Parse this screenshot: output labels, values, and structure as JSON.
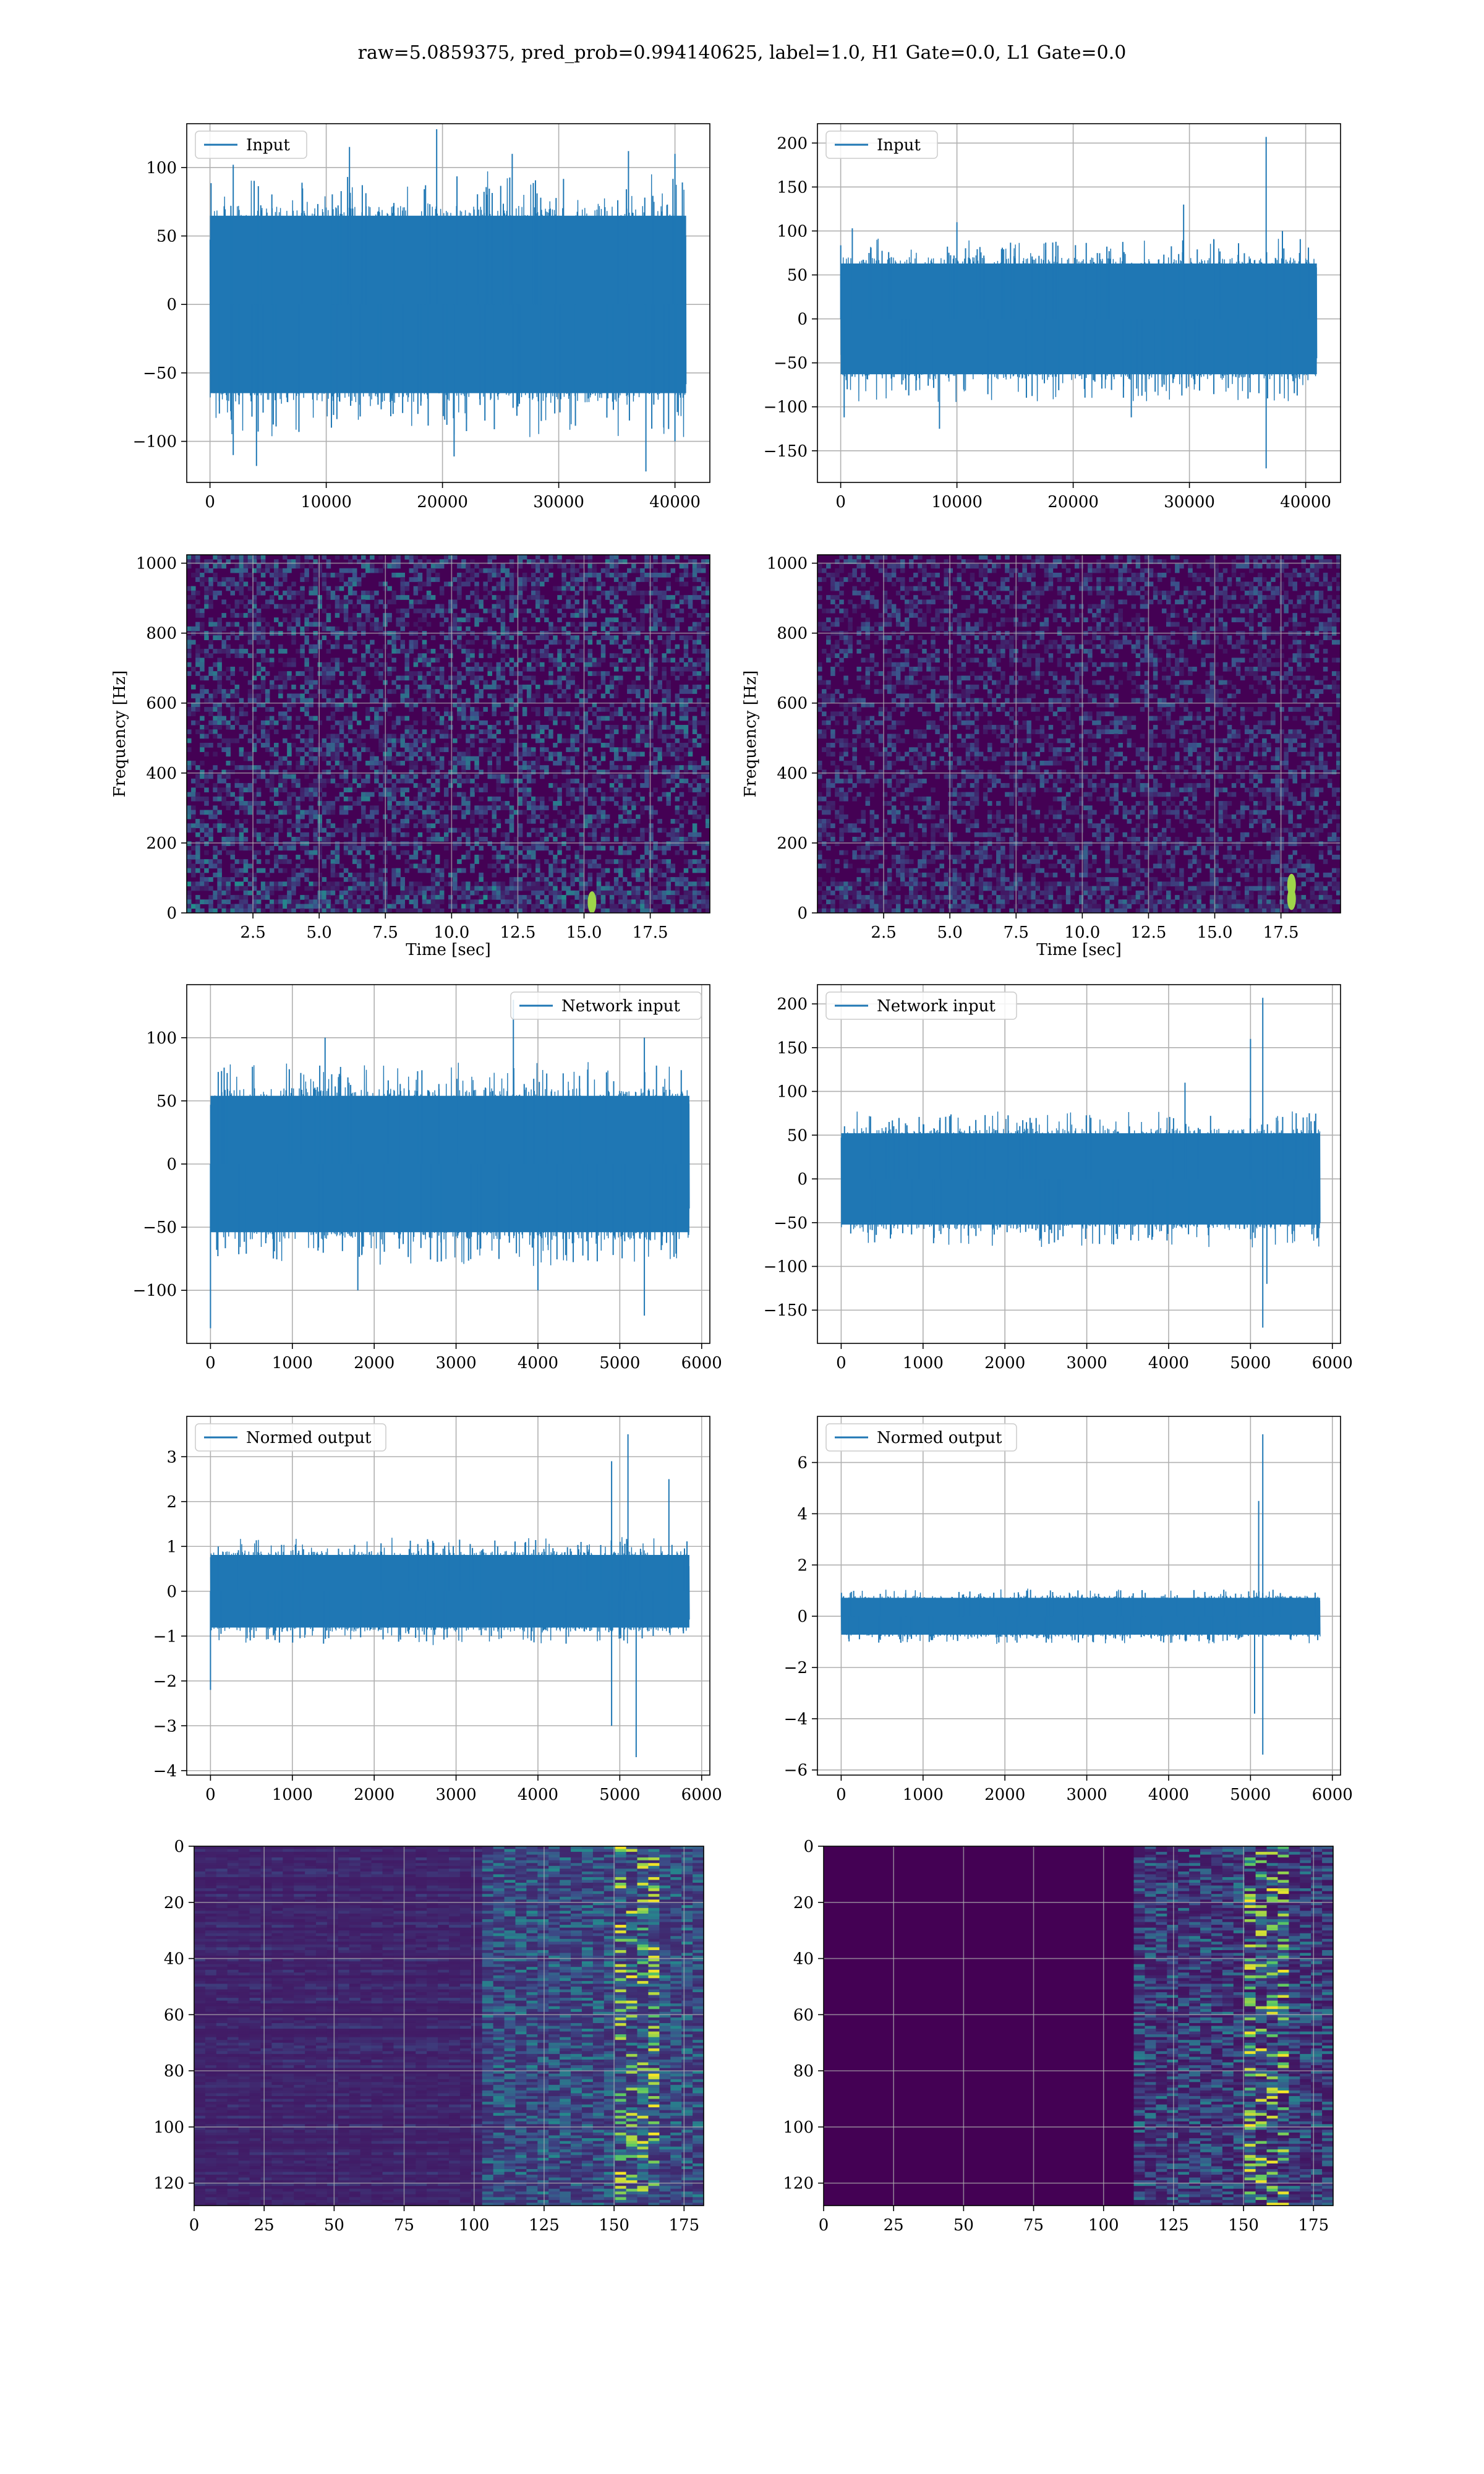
{
  "suptitle": "raw=5.0859375, pred_prob=0.994140625, label=1.0, H1 Gate=0.0, L1 Gate=0.0",
  "colors": {
    "series": "#1f77b4",
    "viridis_low": "#440154",
    "viridis_mid": "#3b528b",
    "viridis_teal": "#21918c",
    "viridis_green": "#5ec962",
    "viridis_high": "#fde725",
    "grid": "#b0b0b0"
  },
  "chart_data": [
    {
      "id": "input-h1",
      "type": "line",
      "legend": "Input",
      "legend_loc": "upper left",
      "grid": true,
      "xlim": [
        -2000,
        43000
      ],
      "ylim": [
        -130,
        132
      ],
      "xticks": [
        0,
        10000,
        20000,
        30000,
        40000
      ],
      "yticks": [
        -100,
        -50,
        0,
        50,
        100
      ],
      "x_range": [
        0,
        40960
      ],
      "band": [
        -72,
        72
      ],
      "peaks_up": [
        [
          2000,
          102
        ],
        [
          12000,
          115
        ],
        [
          19500,
          128
        ],
        [
          26000,
          110
        ],
        [
          36000,
          112
        ],
        [
          40000,
          110
        ]
      ],
      "peaks_down": [
        [
          2000,
          -110
        ],
        [
          4000,
          -118
        ],
        [
          21000,
          -111
        ],
        [
          37500,
          -122
        ],
        [
          40000,
          -100
        ]
      ]
    },
    {
      "id": "input-l1",
      "type": "line",
      "legend": "Input",
      "legend_loc": "upper left",
      "grid": true,
      "xlim": [
        -2000,
        43000
      ],
      "ylim": [
        -186,
        222
      ],
      "xticks": [
        0,
        10000,
        20000,
        30000,
        40000
      ],
      "yticks": [
        -150,
        -100,
        -50,
        0,
        50,
        100,
        150,
        200
      ],
      "x_range": [
        0,
        40960
      ],
      "band": [
        -70,
        70
      ],
      "peaks_up": [
        [
          1000,
          103
        ],
        [
          10000,
          110
        ],
        [
          29500,
          130
        ],
        [
          36600,
          207
        ],
        [
          38000,
          100
        ]
      ],
      "peaks_down": [
        [
          300,
          -112
        ],
        [
          8500,
          -125
        ],
        [
          25000,
          -112
        ],
        [
          36600,
          -170
        ]
      ]
    },
    {
      "id": "spectrogram-h1",
      "type": "heatmap",
      "xlabel": "Time [sec]",
      "ylabel": "Frequency [Hz]",
      "grid": true,
      "xlim": [
        0,
        19.75
      ],
      "ylim": [
        0,
        1024
      ],
      "xticks": [
        2.5,
        5.0,
        7.5,
        10.0,
        12.5,
        15.0,
        17.5
      ],
      "xtick_labels": [
        "2.5",
        "5.0",
        "7.5",
        "10.0",
        "12.5",
        "15.0",
        "17.5"
      ],
      "yticks": [
        0,
        200,
        400,
        600,
        800,
        1000
      ],
      "hot_spots": [
        [
          15.3,
          30
        ]
      ]
    },
    {
      "id": "spectrogram-l1",
      "type": "heatmap",
      "xlabel": "Time [sec]",
      "ylabel": "Frequency [Hz]",
      "grid": true,
      "xlim": [
        0,
        19.75
      ],
      "ylim": [
        0,
        1024
      ],
      "xticks": [
        2.5,
        5.0,
        7.5,
        10.0,
        12.5,
        15.0,
        17.5
      ],
      "xtick_labels": [
        "2.5",
        "5.0",
        "7.5",
        "10.0",
        "12.5",
        "15.0",
        "17.5"
      ],
      "yticks": [
        0,
        200,
        400,
        600,
        800,
        1000
      ],
      "hot_spots": [
        [
          17.9,
          80
        ],
        [
          17.9,
          40
        ]
      ]
    },
    {
      "id": "network-input-h1",
      "type": "line",
      "legend": "Network input",
      "legend_loc": "upper right",
      "grid": true,
      "xlim": [
        -290,
        6100
      ],
      "ylim": [
        -142,
        142
      ],
      "xticks": [
        0,
        1000,
        2000,
        3000,
        4000,
        5000,
        6000
      ],
      "yticks": [
        -100,
        -50,
        0,
        50,
        100
      ],
      "x_range": [
        0,
        5850
      ],
      "band": [
        -60,
        60
      ],
      "peaks_up": [
        [
          1400,
          100
        ],
        [
          3700,
          130
        ],
        [
          5300,
          100
        ]
      ],
      "peaks_down": [
        [
          0,
          -130
        ],
        [
          1800,
          -100
        ],
        [
          4000,
          -100
        ],
        [
          5300,
          -120
        ]
      ]
    },
    {
      "id": "network-input-l1",
      "type": "line",
      "legend": "Network input",
      "legend_loc": "upper left",
      "grid": true,
      "xlim": [
        -290,
        6100
      ],
      "ylim": [
        -188,
        222
      ],
      "xticks": [
        0,
        1000,
        2000,
        3000,
        4000,
        5000,
        6000
      ],
      "yticks": [
        -150,
        -100,
        -50,
        0,
        50,
        100,
        150,
        200
      ],
      "x_range": [
        0,
        5850
      ],
      "band": [
        -58,
        58
      ],
      "peaks_up": [
        [
          4200,
          110
        ],
        [
          5150,
          207
        ],
        [
          5000,
          160
        ]
      ],
      "peaks_down": [
        [
          5150,
          -170
        ],
        [
          5200,
          -120
        ]
      ]
    },
    {
      "id": "normed-output-h1",
      "type": "line",
      "legend": "Normed output",
      "legend_loc": "upper left",
      "grid": true,
      "xlim": [
        -290,
        6100
      ],
      "ylim": [
        -4.1,
        3.9
      ],
      "xticks": [
        0,
        1000,
        2000,
        3000,
        4000,
        5000,
        6000
      ],
      "yticks": [
        -4,
        -3,
        -2,
        -1,
        0,
        1,
        2,
        3
      ],
      "x_range": [
        0,
        5850
      ],
      "band": [
        -0.9,
        0.9
      ],
      "peaks_up": [
        [
          5100,
          3.5
        ],
        [
          4900,
          2.9
        ],
        [
          5600,
          2.5
        ]
      ],
      "peaks_down": [
        [
          0,
          -2.2
        ],
        [
          5200,
          -3.7
        ],
        [
          4900,
          -3.0
        ]
      ]
    },
    {
      "id": "normed-output-l1",
      "type": "line",
      "legend": "Normed output",
      "legend_loc": "upper left",
      "grid": true,
      "xlim": [
        -290,
        6100
      ],
      "ylim": [
        -6.2,
        7.8
      ],
      "xticks": [
        0,
        1000,
        2000,
        3000,
        4000,
        5000,
        6000
      ],
      "yticks": [
        -6,
        -4,
        -2,
        0,
        2,
        4,
        6
      ],
      "x_range": [
        0,
        5850
      ],
      "band": [
        -0.8,
        0.8
      ],
      "peaks_up": [
        [
          5150,
          7.1
        ],
        [
          5100,
          4.5
        ]
      ],
      "peaks_down": [
        [
          5150,
          -5.4
        ],
        [
          5050,
          -3.8
        ]
      ]
    },
    {
      "id": "feature-map-h1",
      "type": "heatmap",
      "grid": true,
      "xlim": [
        0,
        182
      ],
      "ylim": [
        128,
        0
      ],
      "xticks": [
        0,
        25,
        50,
        75,
        100,
        125,
        150,
        175
      ],
      "yticks": [
        0,
        20,
        40,
        60,
        80,
        100,
        120
      ]
    },
    {
      "id": "feature-map-l1",
      "type": "heatmap",
      "grid": true,
      "xlim": [
        0,
        182
      ],
      "ylim": [
        128,
        0
      ],
      "xticks": [
        0,
        25,
        50,
        75,
        100,
        125,
        150,
        175
      ],
      "yticks": [
        0,
        20,
        40,
        60,
        80,
        100,
        120
      ]
    }
  ]
}
